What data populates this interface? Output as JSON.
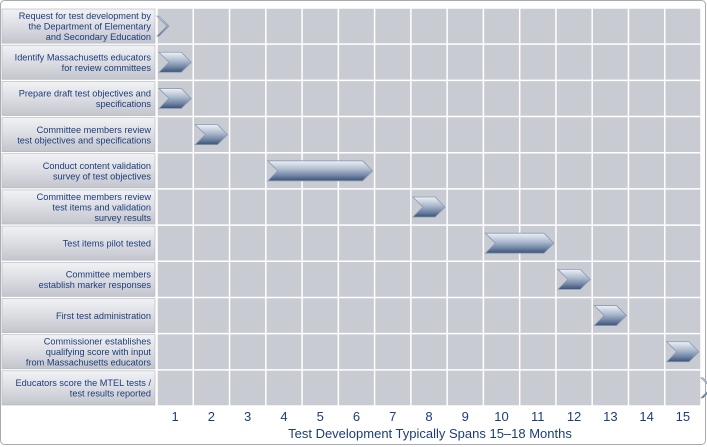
{
  "chart_data": {
    "type": "gantt",
    "xlabel": "Test Development Typically Spans 15–18 Months",
    "x_ticks": [
      "1",
      "2",
      "3",
      "4",
      "5",
      "6",
      "7",
      "8",
      "9",
      "10",
      "11",
      "12",
      "13",
      "14",
      "15"
    ],
    "xlim": [
      1,
      16
    ],
    "grid": true,
    "tasks": [
      {
        "label": [
          "Request for test development by",
          "the Department of Elementary",
          "and Secondary Education"
        ],
        "start": 1,
        "end": 1.2
      },
      {
        "label": [
          "Identify Massachusetts educators",
          "for review committees"
        ],
        "start": 1,
        "end": 2
      },
      {
        "label": [
          "Prepare draft test objectives and",
          "specifications"
        ],
        "start": 1,
        "end": 2
      },
      {
        "label": [
          "Committee members review",
          "test objectives and specifications"
        ],
        "start": 2,
        "end": 3
      },
      {
        "label": [
          "Conduct content validation",
          "survey of test objectives"
        ],
        "start": 4,
        "end": 7
      },
      {
        "label": [
          "Committee members review",
          "test items and validation",
          "survey results"
        ],
        "start": 8,
        "end": 9
      },
      {
        "label": [
          "Test items pilot tested"
        ],
        "start": 10,
        "end": 12
      },
      {
        "label": [
          "Committee members",
          "establish marker responses"
        ],
        "start": 12,
        "end": 13
      },
      {
        "label": [
          "First test administration"
        ],
        "start": 13,
        "end": 14
      },
      {
        "label": [
          "Commissioner establishes",
          "qualifying score with input",
          "from Massachusetts educators"
        ],
        "start": 15,
        "end": 16
      },
      {
        "label": [
          "Educators score the MTEL tests /",
          "test results reported"
        ],
        "start": 16,
        "end": 16.3
      }
    ],
    "colors": {
      "plot_background": "#c9cbd3",
      "grid_line": "#ffffff",
      "label_panel": "#dcdde3",
      "text": "#1c3d7a",
      "bar_light": "#e4e9f1",
      "bar_mid": "#9aabc4",
      "bar_dark": "#3b5275"
    }
  }
}
